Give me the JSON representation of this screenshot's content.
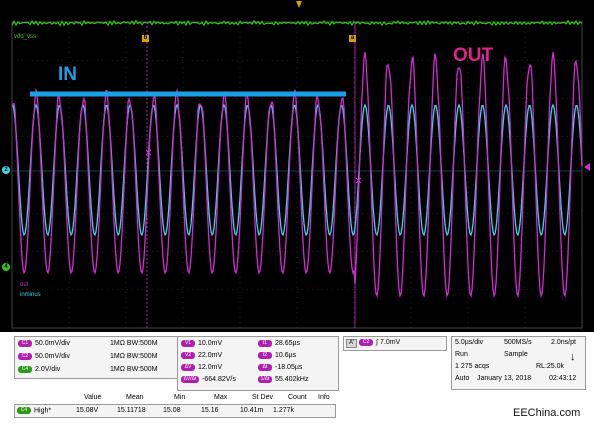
{
  "screen": {
    "trace_labels": {
      "ch4_top": "vdd_vss",
      "out": "out",
      "inminus": "inminus"
    },
    "annotations": {
      "in_label": "IN",
      "out_label": "OUT"
    },
    "cursor_tags": {
      "a": "a",
      "b": "b"
    },
    "markers": {
      "ch2": "2",
      "ch4": "4"
    },
    "colors": {
      "ch1_magenta": "#d42ad4",
      "ch2_cyan": "#38d6e6",
      "ch4_green": "#34c41c",
      "annotation_blue": "#1aa0e6",
      "annotation_pink": "#e0228a",
      "cursor_orange": "#d8a000"
    }
  },
  "channels": [
    {
      "chip": "C1",
      "scale": "50.0mV/div",
      "coupling": "1MΩ",
      "bw": "B​W:500M"
    },
    {
      "chip": "C2",
      "scale": "50.0mV/div",
      "coupling": "1MΩ",
      "bw": "B​W:500M"
    },
    {
      "chip": "C4",
      "scale": "2.0V/div",
      "coupling": "1MΩ",
      "bw": "B​W:500M"
    }
  ],
  "cursors": {
    "v1": {
      "chip": "V1",
      "value": "10.0mV"
    },
    "v2": {
      "chip": "V2",
      "value": "22.0mV"
    },
    "dv": {
      "chip": "ΔV",
      "value": "12.0mV"
    },
    "dvdt": {
      "chip": "ΔV/Δt",
      "value": "-664.82V/s"
    },
    "t1": {
      "chip": "t1",
      "value": "28.65µs"
    },
    "t2": {
      "chip": "t2",
      "value": "10.6µs"
    },
    "dt": {
      "chip": "Δt",
      "value": "-18.05µs"
    },
    "inv_dt": {
      "chip": "1/Δt",
      "value": "55.402kHz"
    }
  },
  "trigger": {
    "tag": "A'",
    "chip": "C2",
    "slope": "∫",
    "level": "7.0mV"
  },
  "acquisition": {
    "timebase": "5.0µs/div",
    "sample_rate": "500MS/s",
    "resolution": "2.0ns/pt",
    "state": "Run",
    "mode": "Sample",
    "acqs": "1 275 acqs",
    "record_length": "RL:25.0k",
    "trigger_mode": "Auto",
    "date": "January 13, 2018",
    "time": "02:43:12"
  },
  "measurement": {
    "headers": [
      "Value",
      "Mean",
      "Min",
      "Max",
      "St Dev",
      "Count",
      "Info"
    ],
    "chip": "C4",
    "name": "High*",
    "values": [
      "15.08V",
      "15.11718",
      "15.08",
      "15.16",
      "10.41m",
      "1.277k",
      ""
    ]
  },
  "watermark": "EEChina.com"
}
